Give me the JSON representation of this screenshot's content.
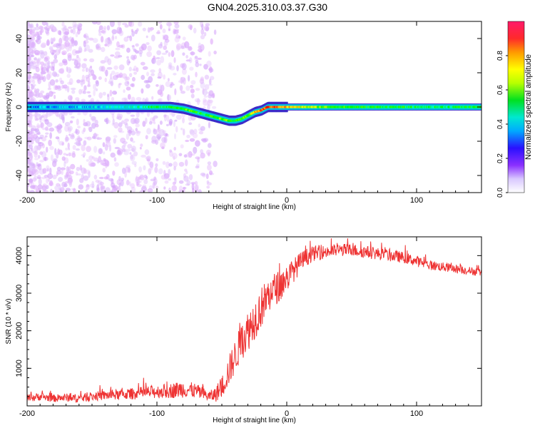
{
  "title": "GN04.2025.310.03.37.G30",
  "chart_data": [
    {
      "type": "heatmap",
      "xlabel": "Height of straight line (km)",
      "ylabel": "Frequency (Hz)",
      "xlim": [
        -200,
        150
      ],
      "ylim": [
        -50,
        50
      ],
      "xticks": [
        -200,
        -100,
        0,
        100
      ],
      "yticks": [
        -40,
        -20,
        0,
        20,
        40
      ],
      "colorbar": {
        "label": "Normalized spectral amplitude",
        "range": [
          0.0,
          1.0
        ],
        "ticks": [
          0.0,
          0.2,
          0.4,
          0.6,
          0.8
        ]
      },
      "ridge": {
        "description": "dominant frequency track (height km, frequency Hz, amplitude)",
        "x": [
          -200,
          -180,
          -160,
          -140,
          -120,
          -100,
          -90,
          -80,
          -75,
          -70,
          -65,
          -60,
          -55,
          -50,
          -45,
          -40,
          -35,
          -30,
          -25,
          -20,
          -15,
          -10,
          -5,
          0,
          10,
          20,
          40,
          60,
          80,
          100,
          120,
          150
        ],
        "y": [
          0,
          0,
          0,
          0,
          0,
          0,
          0,
          -1,
          -2,
          -3,
          -4,
          -5,
          -6,
          -7,
          -8,
          -8,
          -7,
          -5,
          -3,
          -2,
          0,
          0,
          0,
          0,
          0,
          0,
          0,
          0,
          0,
          0,
          0,
          0
        ],
        "amplitude": [
          0.25,
          0.3,
          0.3,
          0.35,
          0.4,
          0.5,
          0.55,
          0.6,
          0.6,
          0.55,
          0.5,
          0.55,
          0.6,
          0.65,
          0.6,
          0.55,
          0.55,
          0.65,
          0.8,
          0.9,
          0.95,
          0.95,
          0.9,
          0.85,
          0.75,
          0.7,
          0.6,
          0.55,
          0.55,
          0.5,
          0.5,
          0.55
        ]
      }
    },
    {
      "type": "line",
      "xlabel": "Height of straight line (km)",
      "ylabel": "SNR (10 * v/v)",
      "xlim": [
        -200,
        150
      ],
      "ylim": [
        0,
        4500
      ],
      "xticks": [
        -200,
        -100,
        0,
        100
      ],
      "yticks": [
        1000,
        2000,
        3000,
        4000
      ],
      "series": [
        {
          "name": "SNR",
          "color": "#ee3333",
          "x": [
            -200,
            -190,
            -180,
            -170,
            -160,
            -150,
            -140,
            -130,
            -120,
            -110,
            -100,
            -90,
            -80,
            -70,
            -60,
            -55,
            -50,
            -45,
            -40,
            -35,
            -30,
            -25,
            -20,
            -15,
            -10,
            -5,
            0,
            5,
            10,
            15,
            20,
            30,
            40,
            50,
            60,
            70,
            80,
            90,
            100,
            110,
            120,
            130,
            140,
            150
          ],
          "values": [
            200,
            250,
            200,
            220,
            200,
            250,
            280,
            300,
            320,
            350,
            380,
            400,
            450,
            400,
            250,
            300,
            500,
            900,
            1300,
            1700,
            2000,
            2300,
            2600,
            2900,
            3100,
            3200,
            3400,
            3600,
            3800,
            3950,
            4050,
            4100,
            4150,
            4150,
            4100,
            4050,
            4000,
            3950,
            3850,
            3750,
            3700,
            3650,
            3600,
            3550
          ],
          "noise": [
            100,
            110,
            100,
            110,
            110,
            120,
            130,
            140,
            150,
            170,
            180,
            200,
            230,
            200,
            140,
            200,
            300,
            400,
            450,
            500,
            550,
            550,
            550,
            500,
            450,
            420,
            380,
            320,
            280,
            240,
            200,
            180,
            170,
            170,
            170,
            160,
            160,
            150,
            140,
            130,
            120,
            120,
            110,
            110
          ]
        }
      ]
    }
  ]
}
